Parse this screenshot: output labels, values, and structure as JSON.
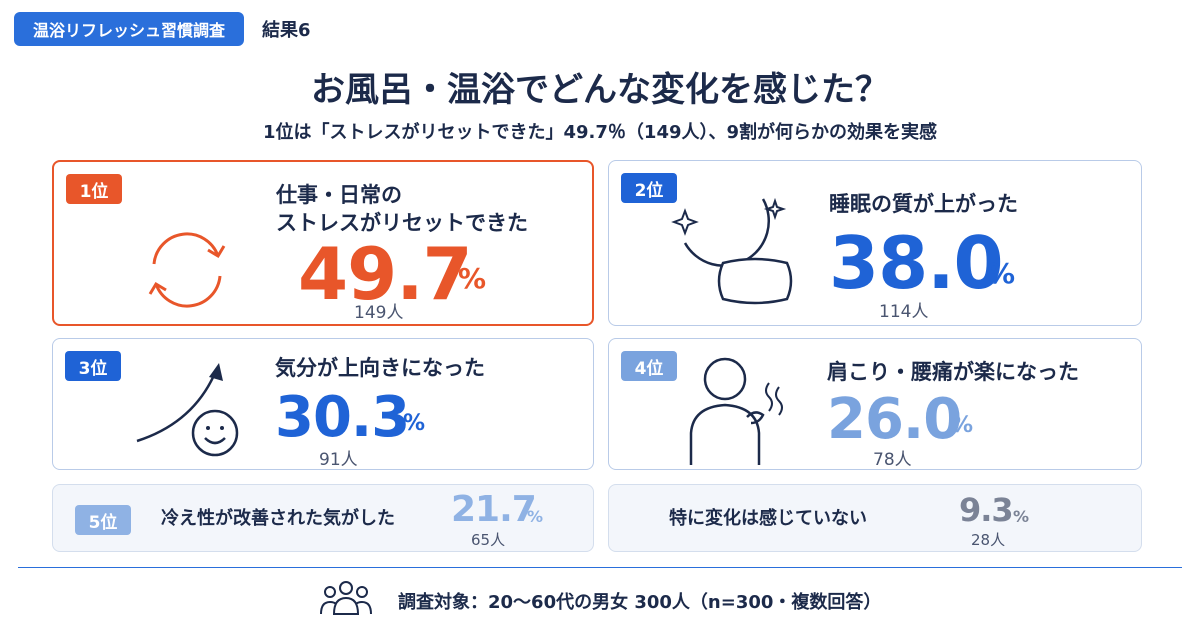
{
  "header": {
    "tag": "温浴リフレッシュ習慣調査",
    "result_no": "結果6"
  },
  "title": "お風呂・温浴でどんな変化を感じた？",
  "subtitle": "1位は「ストレスがリセットできた」49.7％（149人）、9割が何らかの効果を実感",
  "chart_data": {
    "type": "table",
    "unit": "%",
    "items": [
      {
        "rank": "1位",
        "label_line1": "仕事・日常の",
        "label_line2": "ストレスがリセットできた",
        "value": "49.7",
        "pct": "%",
        "count": "149人",
        "icon": "refresh-cycle-icon",
        "color": "#e8562a"
      },
      {
        "rank": "2位",
        "label_line1": "睡眠の質が上がった",
        "value": "38.0",
        "pct": "%",
        "count": "114人",
        "icon": "moon-pillow-icon",
        "color": "#1f63d6"
      },
      {
        "rank": "3位",
        "label_line1": "気分が上向きになった",
        "value": "30.3",
        "pct": "%",
        "count": "91人",
        "icon": "rising-arrow-smile-icon",
        "color": "#1f63d6"
      },
      {
        "rank": "4位",
        "label_line1": "肩こり・腰痛が楽になった",
        "value": "26.0",
        "pct": "%",
        "count": "78人",
        "icon": "shoulder-person-icon",
        "color": "#7aa3de"
      },
      {
        "rank": "5位",
        "label_line1": "冷え性が改善された気がした",
        "value": "21.7",
        "pct": "%",
        "count": "65人",
        "color": "#8fb2e4"
      },
      {
        "rank": "",
        "label_line1": "特に変化は感じていない",
        "value": "9.3",
        "pct": "%",
        "count": "28人",
        "color": "#7b8396"
      }
    ]
  },
  "footer": {
    "text": "調査対象：20～60代の男女 300人（n=300・複数回答）",
    "icon": "people-group-icon"
  }
}
